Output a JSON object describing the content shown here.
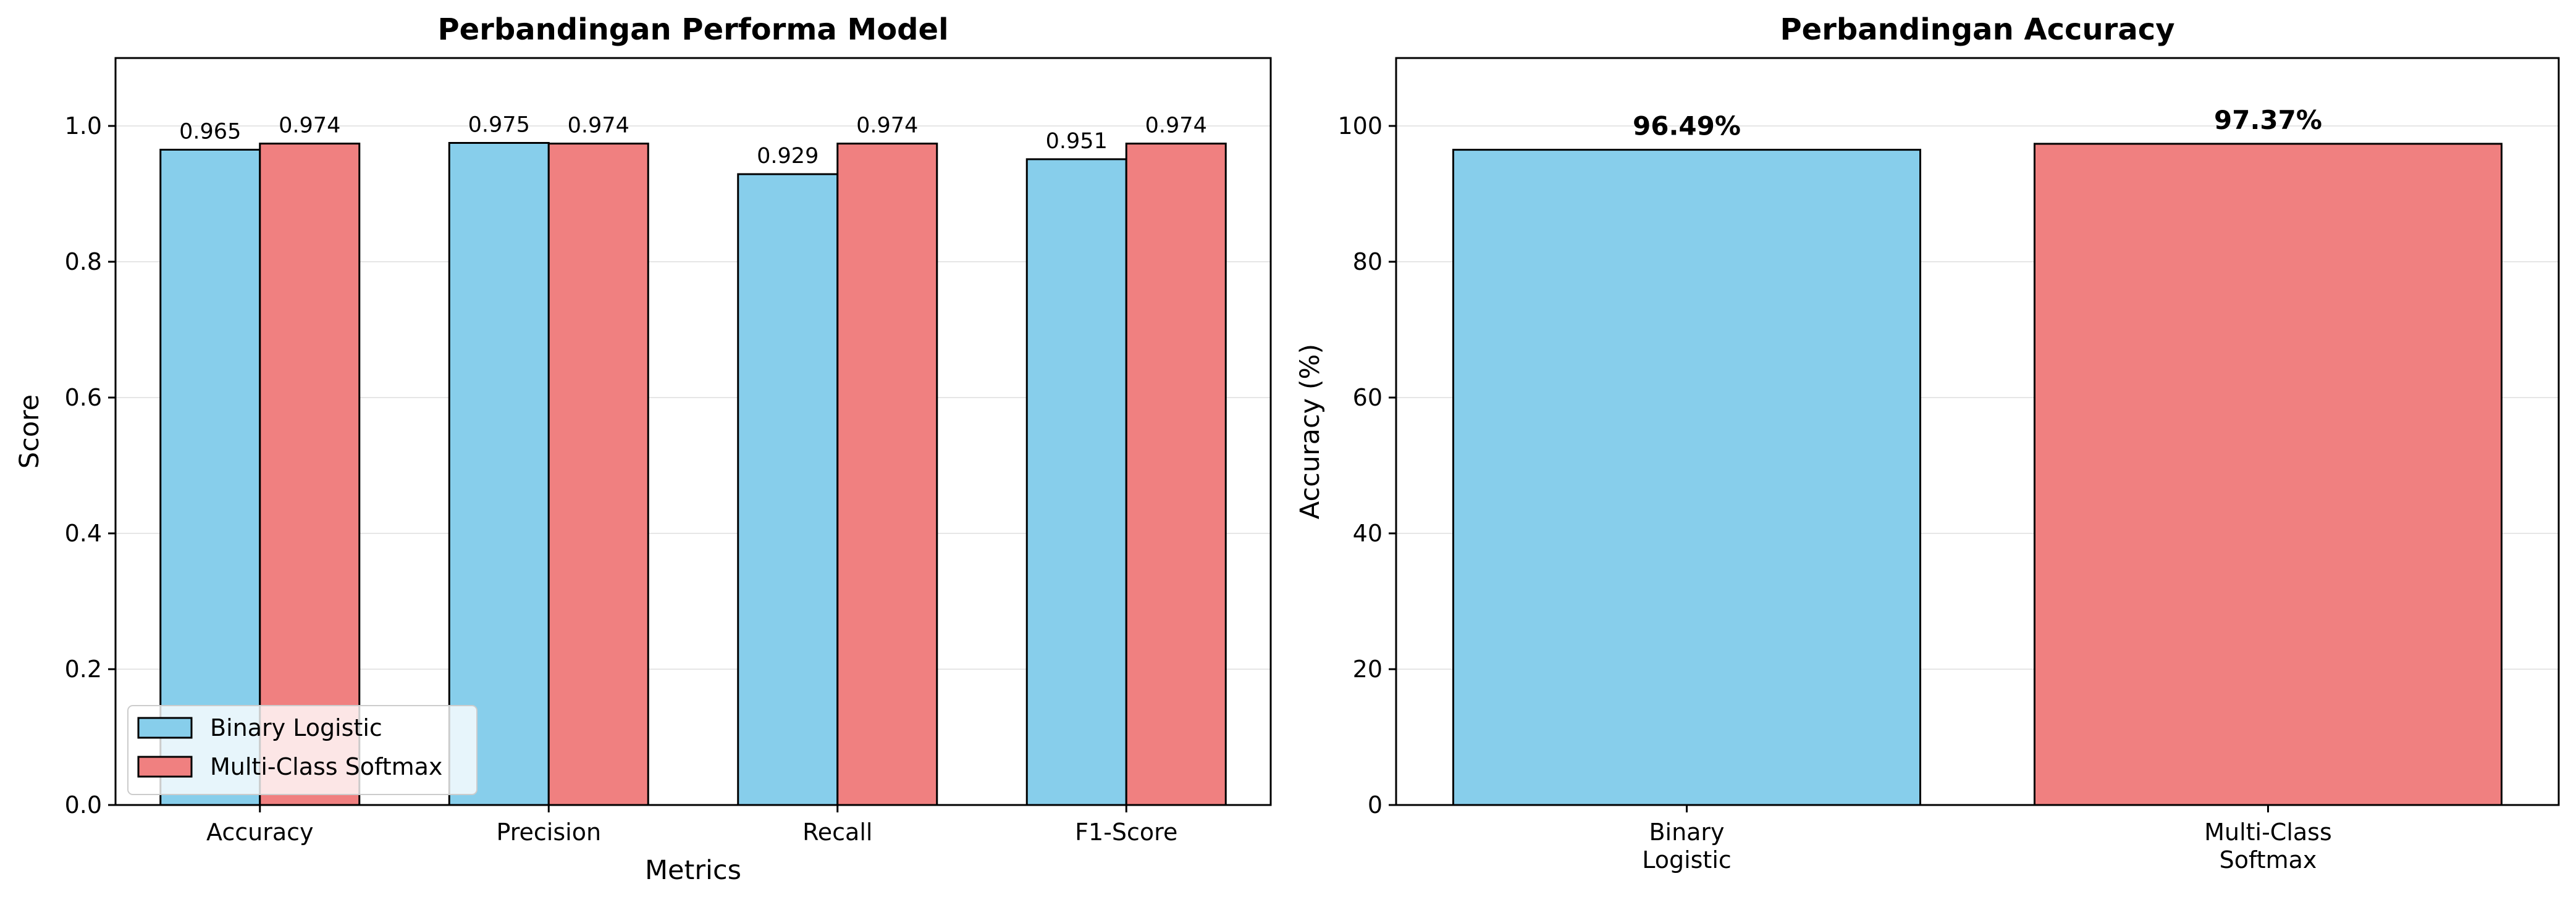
{
  "chart_data": [
    {
      "type": "bar",
      "title": "Perbandingan Performa Model",
      "xlabel": "Metrics",
      "ylabel": "Score",
      "ylim": [
        0,
        1.1
      ],
      "yticks": [
        "0.0",
        "0.2",
        "0.4",
        "0.6",
        "0.8",
        "1.0"
      ],
      "grid": "y",
      "categories": [
        "Accuracy",
        "Precision",
        "Recall",
        "F1-Score"
      ],
      "series": [
        {
          "name": "Binary Logistic",
          "color": "#87CEEB",
          "values": [
            0.965,
            0.975,
            0.929,
            0.951
          ],
          "labels": [
            "0.965",
            "0.975",
            "0.929",
            "0.951"
          ]
        },
        {
          "name": "Multi-Class Softmax",
          "color": "#F08080",
          "values": [
            0.974,
            0.974,
            0.974,
            0.974
          ],
          "labels": [
            "0.974",
            "0.974",
            "0.974",
            "0.974"
          ]
        }
      ],
      "legend": "lower-left"
    },
    {
      "type": "bar",
      "title": "Perbandingan Accuracy",
      "xlabel": "",
      "ylabel": "Accuracy (%)",
      "ylim": [
        0,
        110
      ],
      "yticks": [
        "0",
        "20",
        "40",
        "60",
        "80",
        "100"
      ],
      "grid": "y",
      "categories": [
        [
          "Binary",
          "Logistic"
        ],
        [
          "Multi-Class",
          "Softmax"
        ]
      ],
      "values": [
        96.49,
        97.37
      ],
      "labels": [
        "96.49%",
        "97.37%"
      ],
      "colors": [
        "#87CEEB",
        "#F08080"
      ]
    }
  ]
}
